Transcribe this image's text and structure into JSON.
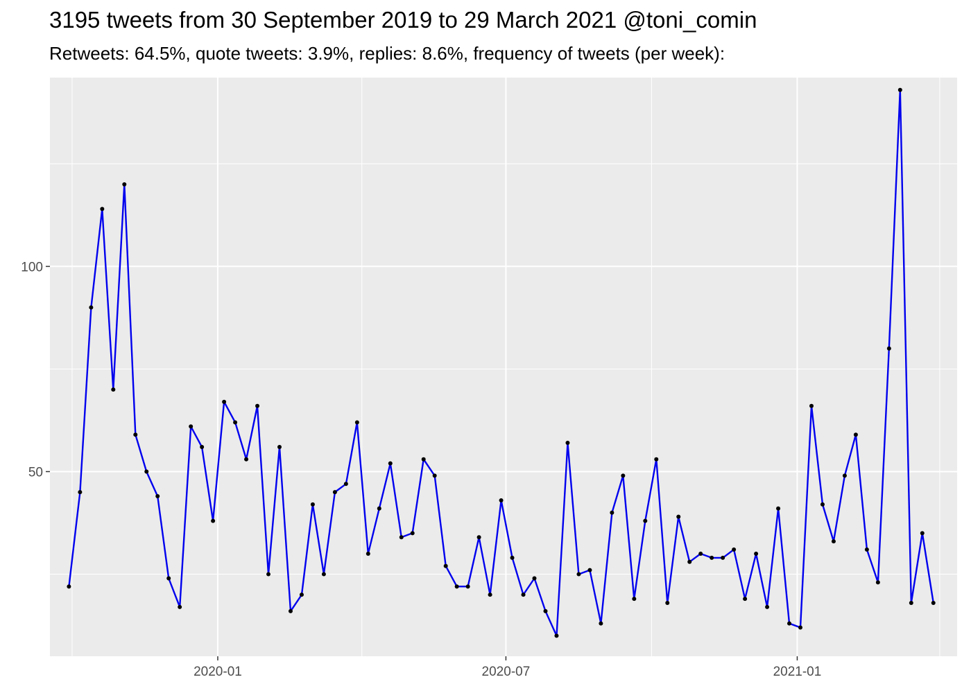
{
  "chart_data": {
    "type": "line",
    "title": "3195 tweets from 30 September 2019 to 29 March 2021 @toni_comin",
    "subtitle": "Retweets: 64.5%, quote tweets: 3.9%, replies: 8.6%, frequency of tweets (per week):",
    "xlabel": "",
    "ylabel": "",
    "x_tick_labels": [
      "2020-01",
      "2020-07",
      "2021-01"
    ],
    "x_ticks": [
      "2020-01-01",
      "2020-07-01",
      "2021-01-01"
    ],
    "x_minor_ticks": [
      "2019-10-01",
      "2020-04-01",
      "2020-10-01",
      "2021-04-01"
    ],
    "xlim": [
      "2019-09-17",
      "2021-04-12"
    ],
    "y_tick_labels": [
      "50",
      "100"
    ],
    "y_ticks": [
      50,
      100
    ],
    "y_minor_ticks": [
      25,
      75,
      125
    ],
    "ylim": [
      5,
      146
    ],
    "grid": true,
    "colors": {
      "panel": "#ebebeb",
      "grid": "#ffffff",
      "line": "#0000ee",
      "point": "#000000"
    },
    "series": [
      {
        "x": [
          "2019-09-29",
          "2019-10-06",
          "2019-10-13",
          "2019-10-20",
          "2019-10-27",
          "2019-11-03",
          "2019-11-10",
          "2019-11-17",
          "2019-11-24",
          "2019-12-01",
          "2019-12-08",
          "2019-12-15",
          "2019-12-22",
          "2019-12-29",
          "2020-01-05",
          "2020-01-12",
          "2020-01-19",
          "2020-01-26",
          "2020-02-02",
          "2020-02-09",
          "2020-02-16",
          "2020-02-23",
          "2020-03-01",
          "2020-03-08",
          "2020-03-15",
          "2020-03-22",
          "2020-03-29",
          "2020-04-05",
          "2020-04-12",
          "2020-04-19",
          "2020-04-26",
          "2020-05-03",
          "2020-05-10",
          "2020-05-17",
          "2020-05-24",
          "2020-05-31",
          "2020-06-07",
          "2020-06-14",
          "2020-06-21",
          "2020-06-28",
          "2020-07-05",
          "2020-07-12",
          "2020-07-19",
          "2020-07-26",
          "2020-08-02",
          "2020-08-09",
          "2020-08-16",
          "2020-08-23",
          "2020-08-30",
          "2020-09-06",
          "2020-09-13",
          "2020-09-20",
          "2020-09-27",
          "2020-10-04",
          "2020-10-11",
          "2020-10-18",
          "2020-10-25",
          "2020-11-01",
          "2020-11-08",
          "2020-11-15",
          "2020-11-22",
          "2020-11-29",
          "2020-12-06",
          "2020-12-13",
          "2020-12-20",
          "2020-12-27",
          "2021-01-03",
          "2021-01-10",
          "2021-01-17",
          "2021-01-24",
          "2021-01-31",
          "2021-02-07",
          "2021-02-14",
          "2021-02-21",
          "2021-02-28",
          "2021-03-07",
          "2021-03-14",
          "2021-03-21",
          "2021-03-28"
        ],
        "values": [
          22,
          45,
          90,
          114,
          70,
          120,
          59,
          50,
          44,
          24,
          17,
          61,
          56,
          38,
          67,
          62,
          53,
          66,
          25,
          56,
          16,
          20,
          42,
          25,
          45,
          47,
          62,
          30,
          41,
          52,
          34,
          35,
          53,
          49,
          27,
          22,
          22,
          34,
          20,
          43,
          29,
          20,
          24,
          16,
          10,
          57,
          25,
          26,
          13,
          40,
          49,
          19,
          38,
          53,
          18,
          39,
          28,
          30,
          29,
          29,
          31,
          19,
          30,
          17,
          41,
          13,
          12,
          66,
          42,
          33,
          49,
          59,
          31,
          23,
          80,
          143,
          18,
          35,
          18
        ]
      }
    ]
  }
}
